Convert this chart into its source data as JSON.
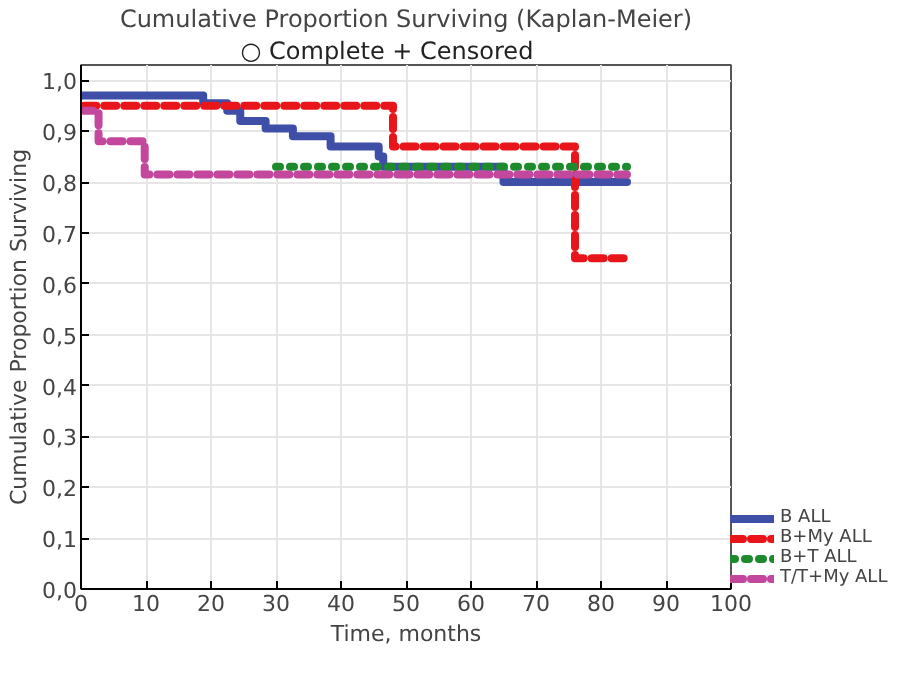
{
  "chart_data": {
    "type": "step",
    "title": "Cumulative Proportion Surviving (Kaplan-Meier)",
    "annotations": [
      "○ Complete",
      "+ Censored"
    ],
    "xlabel": "Time, months",
    "ylabel": "Cumulative Proportion Surviving",
    "series": [
      {
        "name": "B ALL",
        "color": "#3f4fa8",
        "line_style": "solid",
        "x": [
          0,
          18.8,
          22.5,
          24.5,
          28.4,
          32.6,
          38.4,
          45.8,
          46.5,
          65,
          84
        ],
        "values": [
          0.97,
          0.955,
          0.94,
          0.92,
          0.905,
          0.89,
          0.87,
          0.85,
          0.83,
          0.8,
          0.8
        ]
      },
      {
        "name": "B+My ALL",
        "color": "#e8161b",
        "line_style": "dashed",
        "x": [
          0.5,
          48,
          76,
          84
        ],
        "values": [
          0.95,
          0.87,
          0.65,
          0.65
        ]
      },
      {
        "name": "B+T ALL",
        "color": "#1e8a2e",
        "line_style": "dotted",
        "x": [
          30,
          84
        ],
        "values": [
          0.83,
          0.83
        ]
      },
      {
        "name": "T/T+My ALL",
        "color": "#c4479e",
        "line_style": "dashed",
        "x": [
          0,
          2.7,
          9.8,
          84
        ],
        "values": [
          0.94,
          0.88,
          0.815,
          0.815
        ]
      }
    ],
    "xlim": [
      0,
      100
    ],
    "ylim": [
      0,
      1.03
    ],
    "xticks": [
      0,
      10,
      20,
      30,
      40,
      50,
      60,
      70,
      80,
      90,
      100
    ],
    "yticks": [
      {
        "value": 0,
        "label": "0,0"
      },
      {
        "value": 0.1,
        "label": "0,1"
      },
      {
        "value": 0.2,
        "label": "0,2"
      },
      {
        "value": 0.3,
        "label": "0,3"
      },
      {
        "value": 0.4,
        "label": "0,4"
      },
      {
        "value": 0.5,
        "label": "0,5"
      },
      {
        "value": 0.6,
        "label": "0,6"
      },
      {
        "value": 0.7,
        "label": "0,7"
      },
      {
        "value": 0.8,
        "label": "0,8"
      },
      {
        "value": 0.9,
        "label": "0,9"
      },
      {
        "value": 1.0,
        "label": "1,0"
      }
    ],
    "grid": true,
    "legend": "bottom right"
  }
}
